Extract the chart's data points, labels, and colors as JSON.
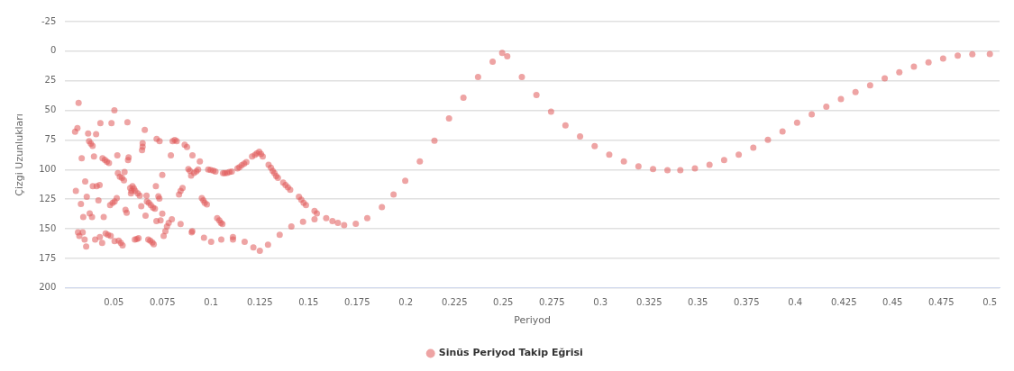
{
  "chart_data": {
    "type": "scatter",
    "xlabel": "Periyod",
    "ylabel": "Çizgi Uzunlukları",
    "xlim": [
      0.025,
      0.505
    ],
    "xticks": [
      0.05,
      0.075,
      0.1,
      0.125,
      0.15,
      0.175,
      0.2,
      0.225,
      0.25,
      0.275,
      0.3,
      0.325,
      0.35,
      0.375,
      0.4,
      0.425,
      0.45,
      0.475,
      0.5
    ],
    "ylim": [
      200,
      -25
    ],
    "yticks": [
      -25,
      0,
      25,
      50,
      75,
      100,
      125,
      150,
      175,
      200
    ],
    "grid": "y",
    "legend": "bottom",
    "marker": "circle",
    "series": [
      {
        "name": "Sinüs Periyod Takip Eğrisi",
        "color": "#e05a5a",
        "x": [
          0.0319,
          0.0301,
          0.0313,
          0.0305,
          0.0335,
          0.0331,
          0.0343,
          0.0316,
          0.0323,
          0.034,
          0.035,
          0.0358,
          0.0353,
          0.0361,
          0.0368,
          0.0373,
          0.0382,
          0.0391,
          0.0376,
          0.0388,
          0.0392,
          0.0398,
          0.0404,
          0.0409,
          0.0412,
          0.0427,
          0.0421,
          0.0431,
          0.0428,
          0.044,
          0.0448,
          0.0442,
          0.0454,
          0.0464,
          0.0475,
          0.0458,
          0.047,
          0.0484,
          0.0481,
          0.0494,
          0.0504,
          0.0515,
          0.0488,
          0.0503,
          0.0518,
          0.0521,
          0.0531,
          0.0542,
          0.0552,
          0.0555,
          0.0504,
          0.0525,
          0.0536,
          0.0545,
          0.056,
          0.0566,
          0.057,
          0.0576,
          0.0573,
          0.0584,
          0.0591,
          0.0588,
          0.0596,
          0.0603,
          0.061,
          0.0623,
          0.0633,
          0.0608,
          0.0618,
          0.0627,
          0.0641,
          0.0645,
          0.0648,
          0.0648,
          0.0659,
          0.0663,
          0.0668,
          0.067,
          0.068,
          0.069,
          0.0701,
          0.0711,
          0.0677,
          0.0687,
          0.0698,
          0.0705,
          0.0716,
          0.072,
          0.0735,
          0.0729,
          0.0734,
          0.0719,
          0.074,
          0.0749,
          0.0756,
          0.0765,
          0.0773,
          0.0782,
          0.0793,
          0.0802,
          0.0813,
          0.0823,
          0.0835,
          0.0843,
          0.0853,
          0.0864,
          0.0876,
          0.0883,
          0.0891,
          0.0897,
          0.0904,
          0.0912,
          0.0924,
          0.0933,
          0.0942,
          0.0952,
          0.096,
          0.0967,
          0.0978,
          0.09,
          0.0985,
          0.0997,
          0.1011,
          0.1022,
          0.1031,
          0.1042,
          0.105,
          0.1058,
          0.1061,
          0.107,
          0.1082,
          0.1094,
          0.1106,
          0.1112,
          0.1135,
          0.1145,
          0.1157,
          0.1169,
          0.1181,
          0.121,
          0.1225,
          0.1235,
          0.1247,
          0.1256,
          0.1265,
          0.1295,
          0.1307,
          0.1316,
          0.1325,
          0.1334,
          0.1343,
          0.137,
          0.1382,
          0.1394,
          0.1406,
          0.1451,
          0.1463,
          0.1475,
          0.1487,
          0.1531,
          0.1543,
          0.0749,
          0.0798,
          0.0843,
          0.0903,
          0.0963,
          0.1,
          0.1052,
          0.1112,
          0.1172,
          0.1217,
          0.125,
          0.1292,
          0.1352,
          0.1412,
          0.1472,
          0.1531,
          0.1591,
          0.1623,
          0.1651,
          0.1683,
          0.1743,
          0.1802,
          0.1877,
          0.1937,
          0.1997,
          0.2072,
          0.2147,
          0.2222,
          0.2296,
          0.2371,
          0.2446,
          0.2495,
          0.2521,
          0.2596,
          0.2671,
          0.2746,
          0.282,
          0.2895,
          0.297,
          0.3045,
          0.312,
          0.3195,
          0.327,
          0.3344,
          0.341,
          0.3485,
          0.356,
          0.3635,
          0.371,
          0.3785,
          0.386,
          0.3935,
          0.401,
          0.4085,
          0.416,
          0.4235,
          0.431,
          0.4385,
          0.446,
          0.4535,
          0.461,
          0.4685,
          0.476,
          0.4835,
          0.491,
          0.5
        ],
        "values": [
          43.6,
          68,
          65,
          118,
          90.5,
          129,
          140,
          153,
          156,
          153,
          159,
          165,
          110,
          123,
          69.5,
          76,
          78,
          80,
          137,
          140,
          114,
          89,
          159,
          70,
          114,
          113,
          126,
          60.7,
          157,
          162,
          140,
          90.5,
          91.7,
          93.3,
          94.5,
          154,
          155,
          156,
          130,
          128,
          127,
          124,
          60.7,
          50,
          88,
          103,
          106,
          107,
          109,
          102,
          160.5,
          160,
          162,
          164,
          134,
          136.5,
          60,
          89.6,
          92,
          115.5,
          118,
          120,
          114,
          116,
          118,
          120,
          122,
          159,
          158.7,
          158,
          131,
          83.5,
          80.7,
          77.7,
          66.5,
          139,
          122,
          127,
          128,
          130,
          132,
          133,
          159,
          160,
          161.5,
          163,
          114,
          74,
          76,
          122.5,
          124.5,
          143.5,
          143,
          104.5,
          156,
          152,
          148,
          145,
          88,
          76,
          75,
          76,
          121,
          118,
          115.5,
          79,
          81,
          99.6,
          101,
          105,
          88,
          102.7,
          101.5,
          100,
          93,
          124,
          126,
          128,
          129.5,
          153,
          100,
          100.3,
          100.8,
          101.7,
          141,
          143,
          145,
          146,
          103,
          103,
          102.7,
          102,
          101.7,
          157,
          99,
          98,
          96.4,
          95,
          93.6,
          89,
          87.5,
          86.3,
          85,
          86.8,
          89,
          96,
          98.5,
          101,
          103,
          105.5,
          107,
          111,
          113,
          115,
          117,
          123,
          125.5,
          128,
          130,
          135,
          137,
          137.2,
          142,
          146,
          152,
          157.5,
          161,
          159,
          159,
          161,
          165.7,
          168.5,
          163.4,
          155,
          148,
          144,
          142,
          141,
          143.4,
          145,
          147,
          145.7,
          141,
          131.7,
          121,
          109.5,
          93,
          75.6,
          56.8,
          39.3,
          21.8,
          8.9,
          1.4,
          4.2,
          21.8,
          37,
          51,
          62.7,
          72,
          80.2,
          87.3,
          93.1,
          97.3,
          99.6,
          100.6,
          100.6,
          99,
          96,
          92,
          87.3,
          81.4,
          74.9,
          67.8,
          60.4,
          53.3,
          46.8,
          40.5,
          34.6,
          28.8,
          22.9,
          17.8,
          13.1,
          9.4,
          6.1,
          3.7,
          2.6,
          2.3
        ]
      }
    ]
  }
}
